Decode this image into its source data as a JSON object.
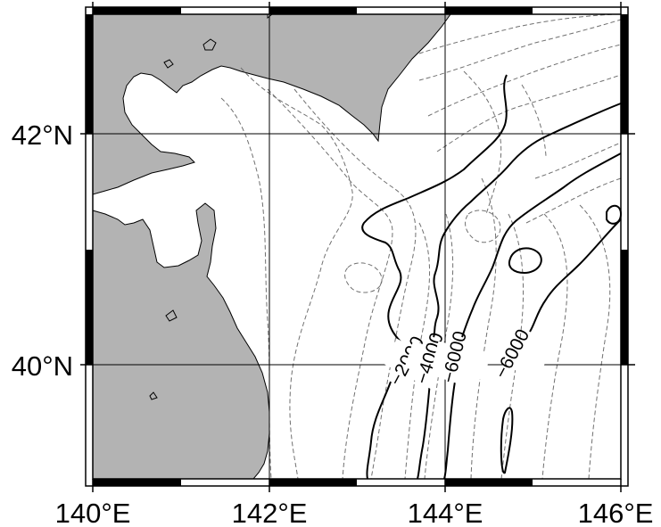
{
  "map": {
    "axis_labels": {
      "y": [
        "42°N",
        "40°N"
      ],
      "x": [
        "140°E",
        "142°E",
        "144°E",
        "146°E"
      ]
    },
    "contour_labels": [
      "−2000",
      "−4000",
      "−6000",
      "−6000"
    ],
    "colors": {
      "land": "#b3b3b3",
      "sea": "#ffffff",
      "coastline": "#000000",
      "major_contour": "#000000",
      "minor_contour": "#707070",
      "grid": "#000000",
      "frame_fill": "#000000"
    }
  }
}
